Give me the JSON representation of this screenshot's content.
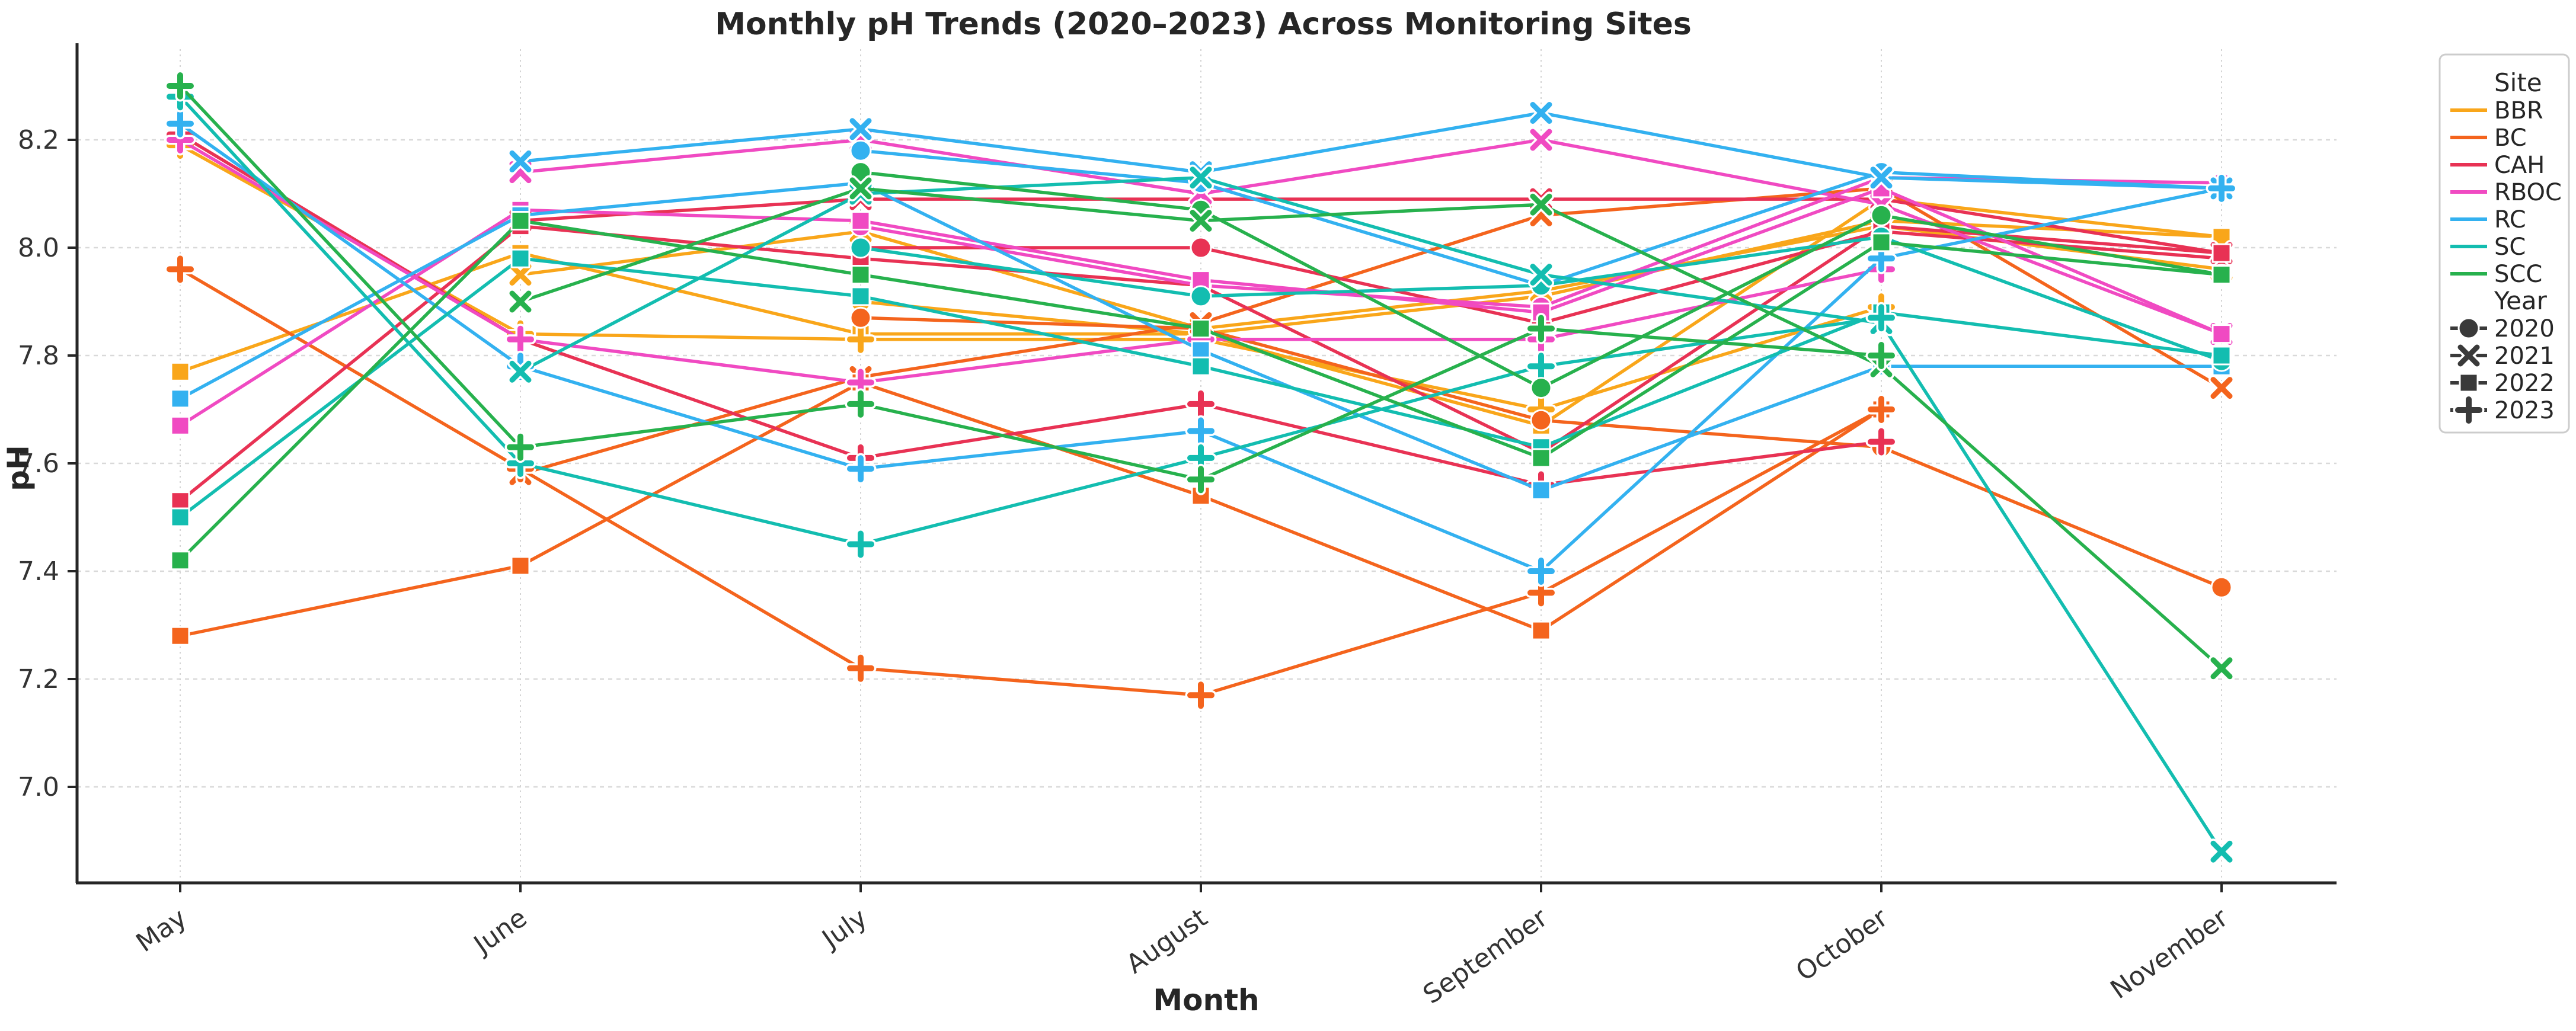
{
  "title": "Monthly pH Trends (2020–2023) Across Monitoring Sites",
  "legend": {
    "site_title": "Site",
    "year_title": "Year"
  },
  "chart_data": {
    "type": "line",
    "title": "Monthly pH Trends (2020–2023) Across Monitoring Sites",
    "xlabel": "Month",
    "ylabel": "pH",
    "categories": [
      "May",
      "June",
      "July",
      "August",
      "September",
      "October",
      "November"
    ],
    "yticks": [
      7.0,
      7.2,
      7.4,
      7.6,
      7.8,
      8.0,
      8.2
    ],
    "ylim": [
      6.82,
      8.38
    ],
    "grid": true,
    "legend_position": "outside upper right",
    "sites": [
      {
        "name": "BBR",
        "color": "#f9a61a"
      },
      {
        "name": "BC",
        "color": "#f4641d"
      },
      {
        "name": "CAH",
        "color": "#e83254"
      },
      {
        "name": "RBOC",
        "color": "#f04ac2"
      },
      {
        "name": "RC",
        "color": "#33b1f0"
      },
      {
        "name": "SC",
        "color": "#13bdb0"
      },
      {
        "name": "SCC",
        "color": "#27b14d"
      }
    ],
    "years": [
      {
        "name": "2020",
        "marker": "circle"
      },
      {
        "name": "2021",
        "marker": "x"
      },
      {
        "name": "2022",
        "marker": "square"
      },
      {
        "name": "2023",
        "marker": "plus"
      }
    ],
    "series": [
      {
        "site": "BBR",
        "year": "2020",
        "values": [
          null,
          null,
          7.9,
          7.84,
          7.91,
          8.05,
          8.02
        ]
      },
      {
        "site": "BBR",
        "year": "2021",
        "values": [
          null,
          7.95,
          8.03,
          7.85,
          7.92,
          8.04,
          7.96
        ]
      },
      {
        "site": "BBR",
        "year": "2022",
        "values": [
          7.77,
          7.99,
          7.84,
          7.84,
          7.67,
          8.09,
          8.02
        ]
      },
      {
        "site": "BBR",
        "year": "2023",
        "values": [
          8.19,
          7.84,
          7.83,
          7.83,
          7.7,
          7.89,
          null
        ]
      },
      {
        "site": "BC",
        "year": "2020",
        "values": [
          null,
          null,
          7.87,
          7.85,
          7.68,
          7.63,
          7.37
        ]
      },
      {
        "site": "BC",
        "year": "2021",
        "values": [
          null,
          7.58,
          7.76,
          7.86,
          8.06,
          8.11,
          7.74
        ]
      },
      {
        "site": "BC",
        "year": "2022",
        "values": [
          7.28,
          7.41,
          7.75,
          7.54,
          7.29,
          7.7,
          null
        ]
      },
      {
        "site": "BC",
        "year": "2023",
        "values": [
          7.96,
          7.59,
          7.22,
          7.17,
          7.36,
          7.7,
          null
        ]
      },
      {
        "site": "CAH",
        "year": "2020",
        "values": [
          null,
          null,
          8.0,
          8.0,
          7.86,
          8.03,
          7.98
        ]
      },
      {
        "site": "CAH",
        "year": "2021",
        "values": [
          null,
          8.05,
          8.09,
          8.09,
          8.09,
          8.09,
          7.99
        ]
      },
      {
        "site": "CAH",
        "year": "2022",
        "values": [
          7.53,
          8.04,
          7.98,
          7.93,
          7.62,
          8.04,
          7.99
        ]
      },
      {
        "site": "CAH",
        "year": "2023",
        "values": [
          8.21,
          7.83,
          7.61,
          7.71,
          7.56,
          7.64,
          null
        ]
      },
      {
        "site": "RBOC",
        "year": "2020",
        "values": [
          null,
          null,
          8.04,
          7.93,
          7.89,
          8.13,
          8.12
        ]
      },
      {
        "site": "RBOC",
        "year": "2021",
        "values": [
          null,
          8.14,
          8.2,
          8.1,
          8.2,
          8.08,
          7.84
        ]
      },
      {
        "site": "RBOC",
        "year": "2022",
        "values": [
          7.67,
          8.07,
          8.05,
          7.94,
          7.88,
          8.11,
          7.84
        ]
      },
      {
        "site": "RBOC",
        "year": "2023",
        "values": [
          8.2,
          7.83,
          7.75,
          7.83,
          7.83,
          7.96,
          null
        ]
      },
      {
        "site": "RC",
        "year": "2020",
        "values": [
          null,
          null,
          8.18,
          8.12,
          7.93,
          8.14,
          8.11
        ]
      },
      {
        "site": "RC",
        "year": "2021",
        "values": [
          null,
          8.16,
          8.22,
          8.14,
          8.25,
          8.13,
          8.11
        ]
      },
      {
        "site": "RC",
        "year": "2022",
        "values": [
          7.72,
          8.06,
          8.12,
          7.81,
          7.55,
          7.78,
          7.78
        ]
      },
      {
        "site": "RC",
        "year": "2023",
        "values": [
          8.23,
          7.78,
          7.59,
          7.66,
          7.4,
          7.98,
          8.11
        ]
      },
      {
        "site": "SC",
        "year": "2020",
        "values": [
          null,
          null,
          8.0,
          7.91,
          7.93,
          8.02,
          7.79
        ]
      },
      {
        "site": "SC",
        "year": "2021",
        "values": [
          null,
          7.77,
          8.1,
          8.13,
          7.95,
          7.86,
          6.88
        ]
      },
      {
        "site": "SC",
        "year": "2022",
        "values": [
          7.5,
          7.98,
          7.91,
          7.78,
          7.63,
          7.88,
          7.8
        ]
      },
      {
        "site": "SC",
        "year": "2023",
        "values": [
          8.28,
          7.6,
          7.45,
          7.61,
          7.78,
          7.87,
          null
        ]
      },
      {
        "site": "SCC",
        "year": "2020",
        "values": [
          null,
          null,
          8.14,
          8.07,
          7.74,
          8.06,
          7.95
        ]
      },
      {
        "site": "SCC",
        "year": "2021",
        "values": [
          null,
          7.9,
          8.11,
          8.05,
          8.08,
          7.78,
          7.22
        ]
      },
      {
        "site": "SCC",
        "year": "2022",
        "values": [
          7.42,
          8.05,
          7.95,
          7.85,
          7.61,
          8.01,
          7.95
        ]
      },
      {
        "site": "SCC",
        "year": "2023",
        "values": [
          8.3,
          7.63,
          7.71,
          7.57,
          7.85,
          7.8,
          null
        ]
      }
    ]
  }
}
